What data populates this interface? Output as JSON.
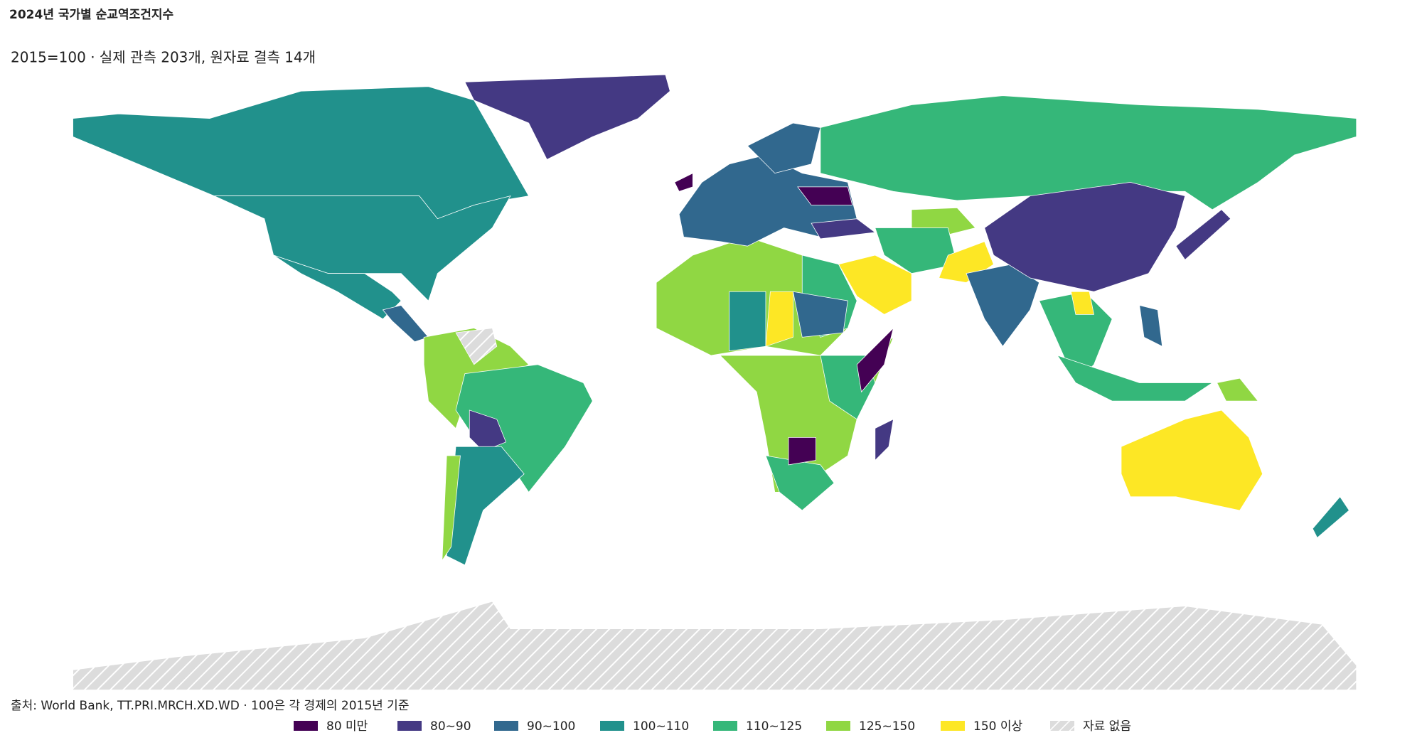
{
  "title": "2024년 국가별 순교역조건지수",
  "subtitle": "2015=100 · 실제 관측 203개, 원자료 결측 14개",
  "source": "출처: World Bank, TT.PRI.MRCH.XD.WD · 100은 각 경제의 2015년 기준",
  "legend": [
    {
      "label": "80 미만",
      "color": "#440154"
    },
    {
      "label": "80~90",
      "color": "#443983"
    },
    {
      "label": "90~100",
      "color": "#31688e"
    },
    {
      "label": "100~110",
      "color": "#21918c"
    },
    {
      "label": "110~125",
      "color": "#35b779"
    },
    {
      "label": "125~150",
      "color": "#90d743"
    },
    {
      "label": "150 이상",
      "color": "#fde725"
    },
    {
      "label": "자료 없음",
      "pattern": "hatch"
    }
  ]
}
